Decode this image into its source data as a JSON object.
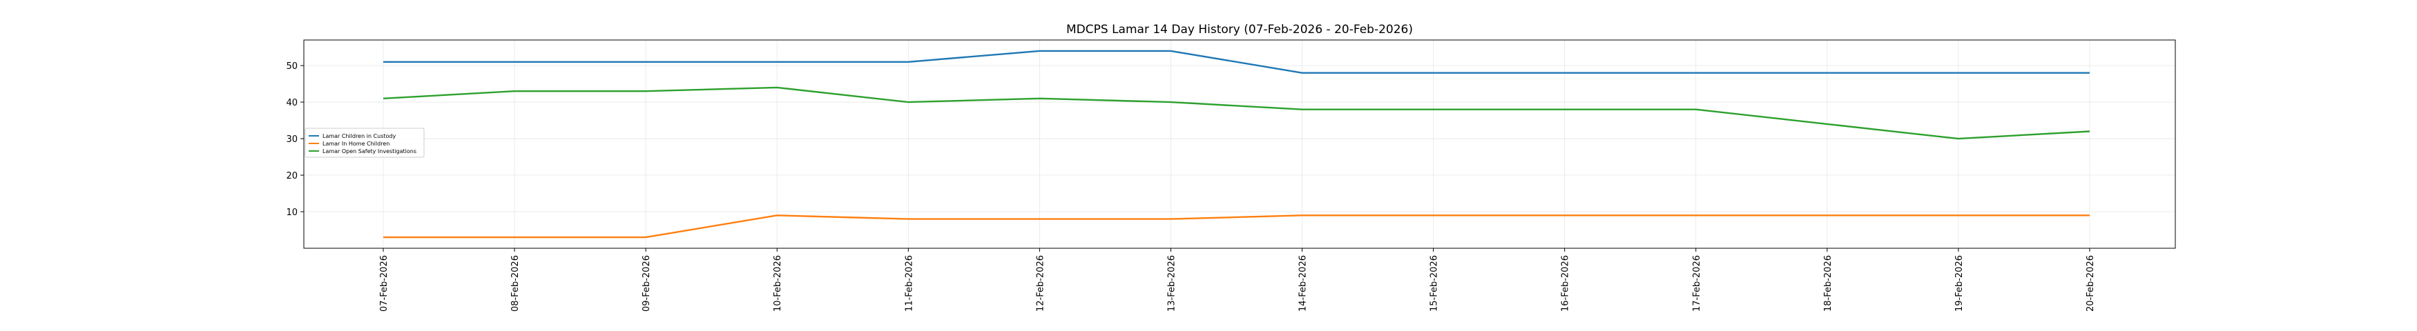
{
  "chart_data": {
    "type": "line",
    "title": "MDCPS Lamar 14 Day History (07-Feb-2026 - 20-Feb-2026)",
    "xlabel": "",
    "ylabel": "",
    "x": [
      "07-Feb-2026",
      "08-Feb-2026",
      "09-Feb-2026",
      "10-Feb-2026",
      "11-Feb-2026",
      "12-Feb-2026",
      "13-Feb-2026",
      "14-Feb-2026",
      "15-Feb-2026",
      "16-Feb-2026",
      "17-Feb-2026",
      "18-Feb-2026",
      "19-Feb-2026",
      "20-Feb-2026"
    ],
    "y_ticks": [
      10,
      20,
      30,
      40,
      50
    ],
    "ylim": [
      0,
      57
    ],
    "grid": true,
    "legend_position": "center-left",
    "series": [
      {
        "name": "Lamar Children in Custody",
        "color": "#1f77b4",
        "values": [
          51,
          51,
          51,
          51,
          51,
          54,
          54,
          48,
          48,
          48,
          48,
          48,
          48,
          48
        ]
      },
      {
        "name": "Lamar In Home Children",
        "color": "#ff7f0e",
        "values": [
          3,
          3,
          3,
          9,
          8,
          8,
          8,
          9,
          9,
          9,
          9,
          9,
          9,
          9
        ]
      },
      {
        "name": "Lamar Open Safety Investigations",
        "color": "#2ca02c",
        "values": [
          41,
          43,
          43,
          44,
          40,
          41,
          40,
          38,
          38,
          38,
          38,
          34,
          30,
          32
        ]
      }
    ]
  }
}
